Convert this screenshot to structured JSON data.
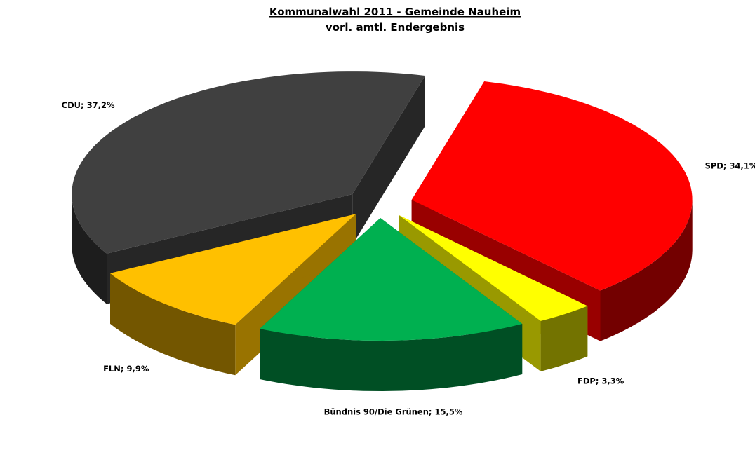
{
  "chart_data": {
    "type": "pie3d",
    "title": "Kommunalwahl 2011 - Gemeinde Nauheim",
    "subtitle": "vorl. amtl. Endergebnis",
    "values": [
      34.1,
      3.3,
      15.5,
      9.9,
      37.2
    ],
    "value_labels": [
      "SPD; 34,1%",
      "FDP; 3,3%",
      "Bündnis 90/Die  Grünen; 15,5%",
      "FLN; 9,9%",
      "CDU; 37,2%"
    ],
    "colors": [
      "#ff0000",
      "#ffff00",
      "#00b050",
      "#ffc000",
      "#404040"
    ],
    "exploded": true
  }
}
